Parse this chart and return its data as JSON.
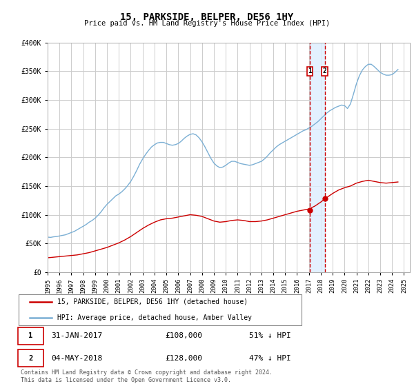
{
  "title": "15, PARKSIDE, BELPER, DE56 1HY",
  "subtitle": "Price paid vs. HM Land Registry's House Price Index (HPI)",
  "ylim": [
    0,
    400000
  ],
  "yticks": [
    0,
    50000,
    100000,
    150000,
    200000,
    250000,
    300000,
    350000,
    400000
  ],
  "ytick_labels": [
    "£0",
    "£50K",
    "£100K",
    "£150K",
    "£200K",
    "£250K",
    "£300K",
    "£350K",
    "£400K"
  ],
  "xlim_start": 1995.0,
  "xlim_end": 2025.5,
  "background_color": "#ffffff",
  "grid_color": "#cccccc",
  "hpi_line_color": "#7bafd4",
  "price_line_color": "#cc0000",
  "vline_color": "#cc0000",
  "shade_color": "#ddeeff",
  "purchase1_date": 2017.08,
  "purchase2_date": 2018.34,
  "purchase1_price": 108000,
  "purchase2_price": 128000,
  "purchase1_label": "31-JAN-2017",
  "purchase2_label": "04-MAY-2018",
  "purchase1_price_str": "£108,000",
  "purchase2_price_str": "£128,000",
  "purchase1_pct": "51% ↓ HPI",
  "purchase2_pct": "47% ↓ HPI",
  "legend_label1": "15, PARKSIDE, BELPER, DE56 1HY (detached house)",
  "legend_label2": "HPI: Average price, detached house, Amber Valley",
  "footer1": "Contains HM Land Registry data © Crown copyright and database right 2024.",
  "footer2": "This data is licensed under the Open Government Licence v3.0.",
  "marker_y": 350000,
  "hpi_data_x": [
    1995.0,
    1995.25,
    1995.5,
    1995.75,
    1996.0,
    1996.25,
    1996.5,
    1996.75,
    1997.0,
    1997.25,
    1997.5,
    1997.75,
    1998.0,
    1998.25,
    1998.5,
    1998.75,
    1999.0,
    1999.25,
    1999.5,
    1999.75,
    2000.0,
    2000.25,
    2000.5,
    2000.75,
    2001.0,
    2001.25,
    2001.5,
    2001.75,
    2002.0,
    2002.25,
    2002.5,
    2002.75,
    2003.0,
    2003.25,
    2003.5,
    2003.75,
    2004.0,
    2004.25,
    2004.5,
    2004.75,
    2005.0,
    2005.25,
    2005.5,
    2005.75,
    2006.0,
    2006.25,
    2006.5,
    2006.75,
    2007.0,
    2007.25,
    2007.5,
    2007.75,
    2008.0,
    2008.25,
    2008.5,
    2008.75,
    2009.0,
    2009.25,
    2009.5,
    2009.75,
    2010.0,
    2010.25,
    2010.5,
    2010.75,
    2011.0,
    2011.25,
    2011.5,
    2011.75,
    2012.0,
    2012.25,
    2012.5,
    2012.75,
    2013.0,
    2013.25,
    2013.5,
    2013.75,
    2014.0,
    2014.25,
    2014.5,
    2014.75,
    2015.0,
    2015.25,
    2015.5,
    2015.75,
    2016.0,
    2016.25,
    2016.5,
    2016.75,
    2017.0,
    2017.25,
    2017.5,
    2017.75,
    2018.0,
    2018.25,
    2018.5,
    2018.75,
    2019.0,
    2019.25,
    2019.5,
    2019.75,
    2020.0,
    2020.25,
    2020.5,
    2020.75,
    2021.0,
    2021.25,
    2021.5,
    2021.75,
    2022.0,
    2022.25,
    2022.5,
    2022.75,
    2023.0,
    2023.25,
    2023.5,
    2023.75,
    2024.0,
    2024.25,
    2024.5
  ],
  "hpi_data_y": [
    61000,
    60500,
    61500,
    62000,
    63000,
    64000,
    65000,
    67000,
    69000,
    71000,
    74000,
    77000,
    80000,
    83000,
    87000,
    90000,
    94000,
    99000,
    105000,
    112000,
    118000,
    123000,
    128000,
    133000,
    136000,
    140000,
    145000,
    151000,
    158000,
    167000,
    177000,
    188000,
    197000,
    205000,
    212000,
    218000,
    222000,
    225000,
    226000,
    226000,
    224000,
    222000,
    221000,
    222000,
    224000,
    228000,
    233000,
    237000,
    240000,
    241000,
    239000,
    234000,
    227000,
    218000,
    208000,
    198000,
    190000,
    185000,
    182000,
    183000,
    186000,
    190000,
    193000,
    193000,
    191000,
    189000,
    188000,
    187000,
    186000,
    187000,
    189000,
    191000,
    193000,
    197000,
    202000,
    208000,
    213000,
    218000,
    222000,
    225000,
    228000,
    231000,
    234000,
    237000,
    240000,
    243000,
    246000,
    248000,
    251000,
    254000,
    258000,
    262000,
    267000,
    272000,
    277000,
    281000,
    284000,
    287000,
    289000,
    291000,
    290000,
    285000,
    293000,
    310000,
    328000,
    342000,
    352000,
    358000,
    362000,
    362000,
    358000,
    353000,
    348000,
    345000,
    343000,
    343000,
    344000,
    348000,
    353000
  ],
  "price_data_x": [
    1995.0,
    1995.5,
    1996.0,
    1996.5,
    1997.0,
    1997.5,
    1998.0,
    1998.5,
    1999.0,
    1999.5,
    2000.0,
    2000.5,
    2001.0,
    2001.5,
    2002.0,
    2002.5,
    2003.0,
    2003.5,
    2004.0,
    2004.5,
    2005.0,
    2005.5,
    2006.0,
    2006.5,
    2007.0,
    2007.5,
    2008.0,
    2008.5,
    2009.0,
    2009.5,
    2010.0,
    2010.5,
    2011.0,
    2011.5,
    2012.0,
    2012.5,
    2013.0,
    2013.5,
    2014.0,
    2014.5,
    2015.0,
    2015.5,
    2016.0,
    2016.5,
    2017.0,
    2017.5,
    2018.0,
    2018.5,
    2019.0,
    2019.5,
    2020.0,
    2020.5,
    2021.0,
    2021.5,
    2022.0,
    2022.5,
    2023.0,
    2023.5,
    2024.0,
    2024.5
  ],
  "price_data_y": [
    25000,
    26000,
    27000,
    28000,
    29000,
    30000,
    32000,
    34000,
    37000,
    40000,
    43000,
    47000,
    51000,
    56000,
    62000,
    69000,
    76000,
    82000,
    87000,
    91000,
    93000,
    94000,
    96000,
    98000,
    100000,
    99000,
    97000,
    93000,
    89000,
    87000,
    88000,
    90000,
    91000,
    90000,
    88000,
    88000,
    89000,
    91000,
    94000,
    97000,
    100000,
    103000,
    106000,
    108000,
    110000,
    115000,
    122000,
    130000,
    137000,
    143000,
    147000,
    150000,
    155000,
    158000,
    160000,
    158000,
    156000,
    155000,
    156000,
    157000
  ]
}
